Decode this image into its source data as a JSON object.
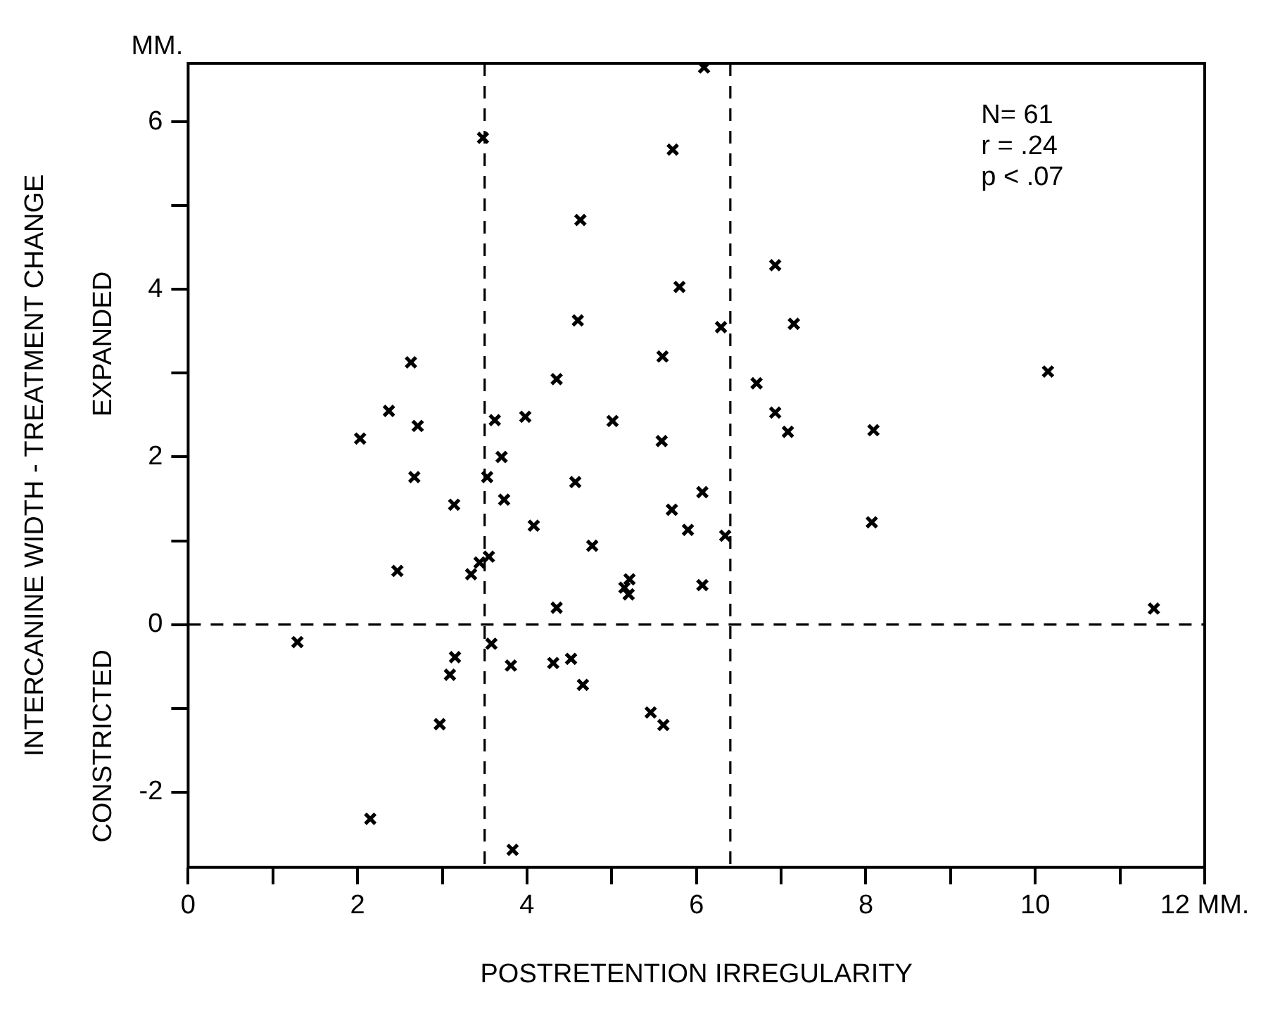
{
  "chart_data": {
    "type": "scatter",
    "xlabel": "POSTRETENTION IRREGULARITY",
    "ylabel": "INTERCANINE WIDTH - TREATMENT CHANGE",
    "annotations": [
      "MM.",
      "EXPANDED",
      "CONSTRICTED",
      "N= 61\nr = .24\np < .07"
    ],
    "x": [
      6.09,
      3.48,
      5.72,
      4.63,
      5.8,
      4.6,
      6.29,
      2.63,
      5.6,
      4.35,
      2.37,
      2.71,
      3.62,
      3.98,
      5.01,
      2.03,
      5.59,
      3.7,
      6.93,
      7.15,
      10.15,
      6.71,
      6.93,
      7.08,
      8.09,
      2.67,
      3.53,
      3.73,
      3.14,
      4.57,
      6.07,
      4.08,
      5.71,
      5.9,
      6.34,
      4.77,
      2.47,
      3.55,
      3.44,
      3.34,
      5.21,
      5.15,
      5.2,
      6.07,
      4.35,
      1.29,
      3.58,
      3.15,
      3.09,
      3.81,
      4.31,
      4.52,
      4.66,
      2.97,
      5.46,
      5.61,
      2.15,
      3.83,
      8.07,
      11.4
    ],
    "series": [
      {
        "color": "#000000",
        "values": [
          6.65,
          5.81,
          5.67,
          4.83,
          4.03,
          3.63,
          3.55,
          3.13,
          3.2,
          2.93,
          2.55,
          2.37,
          2.44,
          2.48,
          2.43,
          2.22,
          2.19,
          2.0,
          4.29,
          3.59,
          3.02,
          2.88,
          2.53,
          2.3,
          2.32,
          1.76,
          1.76,
          1.49,
          1.43,
          1.7,
          1.58,
          1.18,
          1.37,
          1.13,
          1.06,
          0.94,
          0.64,
          0.81,
          0.74,
          0.6,
          0.54,
          0.44,
          0.36,
          0.47,
          0.2,
          -0.21,
          -0.23,
          -0.39,
          -0.6,
          -0.49,
          -0.46,
          -0.41,
          -0.72,
          -1.19,
          -1.05,
          -1.2,
          -2.32,
          -2.69,
          1.22,
          0.19
        ]
      }
    ],
    "xlim": [
      0,
      12
    ],
    "ylim": [
      -2.9,
      6.7
    ],
    "xticks": [
      0,
      {
        "value": 1,
        "label": null
      },
      2,
      {
        "value": 3,
        "label": null
      },
      4,
      {
        "value": 5,
        "label": null
      },
      6,
      {
        "value": 7,
        "label": null
      },
      8,
      {
        "value": 9,
        "label": null
      },
      10,
      {
        "value": 11,
        "label": null
      },
      {
        "value": 12,
        "label": "12 MM."
      }
    ],
    "yticks": [
      -2,
      {
        "value": -1,
        "label": null
      },
      0,
      {
        "value": 1,
        "label": null
      },
      2,
      {
        "value": 3,
        "label": null
      },
      4,
      {
        "value": 5,
        "label": null
      },
      6
    ],
    "ref_lines": [
      {
        "axis": "x",
        "value": 3.5,
        "line_style": "dashed"
      },
      {
        "axis": "x",
        "value": 6.4,
        "line_style": "dashed"
      },
      {
        "axis": "y",
        "value": 0,
        "line_style": "dashed"
      }
    ],
    "grid": false,
    "legend": false,
    "marker": "cross"
  }
}
